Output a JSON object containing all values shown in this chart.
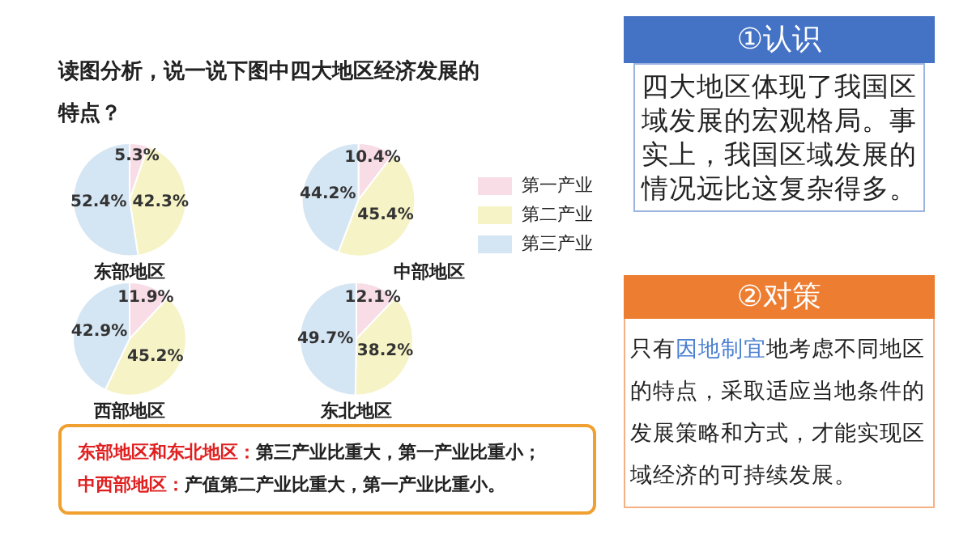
{
  "chart_data": [
    {
      "type": "pie",
      "title": "东部地区",
      "categories": [
        null,
        null,
        null
      ],
      "values": [
        5.3,
        42.3,
        52.4
      ],
      "value_labels": [
        "5.3%",
        "42.3%",
        "52.4%"
      ],
      "colors": [
        "#f8dce6",
        "#f6f3c6",
        "#d4e5f3"
      ],
      "legend": false
    },
    {
      "type": "pie",
      "title": "中部地区",
      "categories": [
        "第一产业",
        "第二产业",
        "第三产业"
      ],
      "values": [
        10.4,
        45.4,
        44.2
      ],
      "value_labels": [
        "10.4%",
        "45.4%",
        "44.2%"
      ],
      "colors": [
        "#f8dce6",
        "#f6f3c6",
        "#d4e5f3"
      ],
      "legend": "right"
    },
    {
      "type": "pie",
      "title": "西部地区",
      "categories": [
        null,
        null,
        null
      ],
      "values": [
        11.9,
        45.2,
        42.9
      ],
      "value_labels": [
        "11.9%",
        "45.2%",
        "42.9%"
      ],
      "colors": [
        "#f8dce6",
        "#f6f3c6",
        "#d4e5f3"
      ],
      "legend": false
    },
    {
      "type": "pie",
      "title": "东北地区",
      "categories": [
        null,
        null,
        null
      ],
      "values": [
        12.1,
        38.2,
        49.7
      ],
      "value_labels": [
        "12.1%",
        "38.2%",
        "49.7%"
      ],
      "colors": [
        "#f8dce6",
        "#f6f3c6",
        "#d4e5f3"
      ],
      "legend": false
    },
    {
      "type": "other",
      "title": "读图分析，说一说下图中四大地区经济发展的特点？"
    },
    {
      "type": "other",
      "annotations": [
        "东部地区和东北地区：",
        "第三产业比重大，第一产业比重小；",
        "中西部地区：",
        "产值第二产业比重大，第一产业比重小。"
      ]
    },
    {
      "type": "other",
      "title": "①认识",
      "annotations": [
        "四大地区体现了我国区域发展的宏观格局。事实上，我国区域发展的情况远比这复杂得多。"
      ]
    },
    {
      "type": "other",
      "title": "②对策",
      "annotations": [
        "只有",
        "因地制宜",
        "地考虑不同地区的特点，采取适应当地条件的发展策略和方式，才能实现区域经济的可持续发展。"
      ]
    }
  ]
}
